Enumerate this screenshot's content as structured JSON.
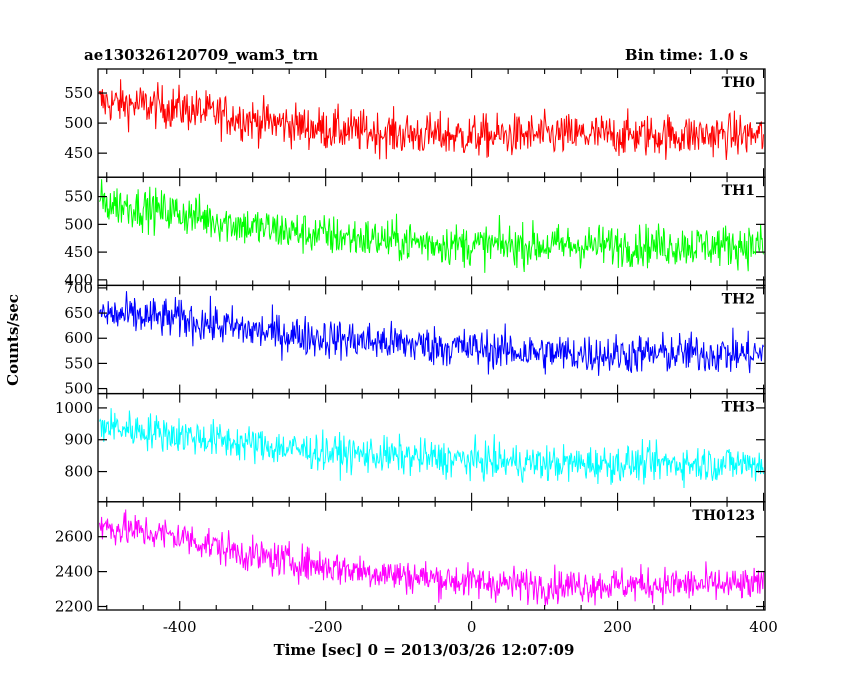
{
  "header": {
    "left": "ae130326120709_wam3_trn",
    "right": "Bin time: 1.0 s"
  },
  "chart_data": {
    "type": "line",
    "title": "ae130326120709_wam3_trn",
    "bin_time": "Bin time: 1.0 s",
    "xlabel": "Time [sec] 0 = 2013/03/26 12:07:09",
    "ylabel": "Counts/sec",
    "xlim": [
      -512,
      402
    ],
    "xticks": [
      -400,
      -200,
      0,
      200,
      400
    ],
    "grid": false,
    "legend": "none",
    "panels": [
      {
        "name": "TH0",
        "color": "#ff0000",
        "ylim": [
          410,
          590
        ],
        "yticks": [
          450,
          500,
          550
        ],
        "trend": [
          [
            -510,
            535
          ],
          [
            -400,
            525
          ],
          [
            -300,
            505
          ],
          [
            -200,
            490
          ],
          [
            -100,
            482
          ],
          [
            0,
            478
          ],
          [
            100,
            480
          ],
          [
            200,
            480
          ],
          [
            300,
            480
          ],
          [
            400,
            480
          ]
        ],
        "noise_amplitude": 34,
        "y_min_observed": 425,
        "y_max_observed": 590
      },
      {
        "name": "TH1",
        "color": "#00ff00",
        "ylim": [
          390,
          585
        ],
        "yticks": [
          400,
          450,
          500,
          550
        ],
        "trend": [
          [
            -510,
            540
          ],
          [
            -400,
            520
          ],
          [
            -300,
            495
          ],
          [
            -200,
            480
          ],
          [
            -100,
            470
          ],
          [
            0,
            462
          ],
          [
            100,
            462
          ],
          [
            200,
            462
          ],
          [
            300,
            462
          ],
          [
            400,
            462
          ]
        ],
        "noise_amplitude": 36,
        "y_min_observed": 400,
        "y_max_observed": 585
      },
      {
        "name": "TH2",
        "color": "#0000ff",
        "ylim": [
          490,
          705
        ],
        "yticks": [
          500,
          550,
          600,
          650,
          700
        ],
        "trend": [
          [
            -510,
            648
          ],
          [
            -400,
            638
          ],
          [
            -300,
            615
          ],
          [
            -200,
            600
          ],
          [
            -100,
            590
          ],
          [
            0,
            580
          ],
          [
            100,
            570
          ],
          [
            200,
            568
          ],
          [
            300,
            570
          ],
          [
            400,
            568
          ]
        ],
        "noise_amplitude": 38,
        "y_min_observed": 500,
        "y_max_observed": 705
      },
      {
        "name": "TH3",
        "color": "#00ffff",
        "ylim": [
          705,
          1045
        ],
        "yticks": [
          800,
          900,
          1000
        ],
        "trend": [
          [
            -510,
            945
          ],
          [
            -400,
            915
          ],
          [
            -300,
            885
          ],
          [
            -200,
            860
          ],
          [
            -100,
            848
          ],
          [
            0,
            835
          ],
          [
            100,
            825
          ],
          [
            200,
            825
          ],
          [
            300,
            825
          ],
          [
            400,
            825
          ]
        ],
        "noise_amplitude": 55,
        "y_min_observed": 730,
        "y_max_observed": 1045
      },
      {
        "name": "TH0123",
        "color": "#ff00ff",
        "ylim": [
          2180,
          2800
        ],
        "yticks": [
          2200,
          2400,
          2600
        ],
        "trend": [
          [
            -510,
            2660
          ],
          [
            -400,
            2600
          ],
          [
            -300,
            2490
          ],
          [
            -200,
            2430
          ],
          [
            -100,
            2380
          ],
          [
            0,
            2340
          ],
          [
            100,
            2320
          ],
          [
            200,
            2325
          ],
          [
            300,
            2325
          ],
          [
            400,
            2320
          ]
        ],
        "noise_amplitude": 95,
        "y_min_observed": 2190,
        "y_max_observed": 2800
      }
    ]
  }
}
